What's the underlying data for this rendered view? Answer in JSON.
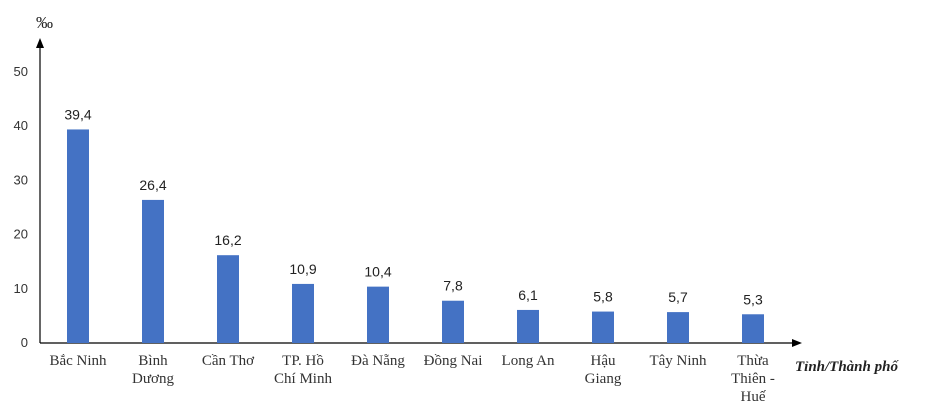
{
  "chart_data": {
    "type": "bar",
    "categories": [
      [
        "Bắc Ninh"
      ],
      [
        "Bình",
        "Dương"
      ],
      [
        "Cần Thơ"
      ],
      [
        "TP. Hồ",
        "Chí Minh"
      ],
      [
        "Đà Nẵng"
      ],
      [
        "Đồng Nai"
      ],
      [
        "Long An"
      ],
      [
        "Hậu",
        "Giang"
      ],
      [
        "Tây Ninh"
      ],
      [
        "Thừa",
        "Thiên -",
        "Huế"
      ]
    ],
    "values": [
      39.4,
      26.4,
      16.2,
      10.9,
      10.4,
      7.8,
      6.1,
      5.8,
      5.7,
      5.3
    ],
    "data_labels": [
      "39,4",
      "26,4",
      "16,2",
      "10,9",
      "10,4",
      "7,8",
      "6,1",
      "5,8",
      "5,7",
      "5,3"
    ],
    "y_ticks": [
      0,
      10,
      20,
      30,
      40,
      50
    ],
    "ylim": [
      0,
      50
    ],
    "ylabel": "‰",
    "xlabel": "Tỉnh/Thành phố",
    "grid": false,
    "bar_color": "#4472C4",
    "axis_color": "#000000"
  }
}
